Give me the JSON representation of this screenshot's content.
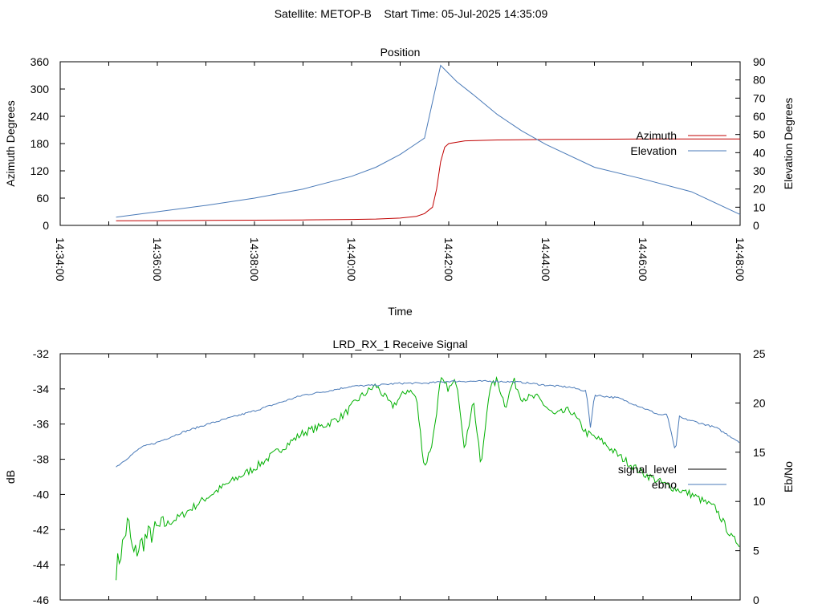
{
  "header": {
    "title": "Satellite: METOP-B    Start Time: 05-Jul-2025 14:35:09"
  },
  "chart_data": [
    {
      "type": "line",
      "title": "Position",
      "xlabel": "Time",
      "ylabel": "Azimuth Degrees",
      "y2label": "Elevation Degrees",
      "x_ticks": [
        "14:34:00",
        "14:36:00",
        "14:38:00",
        "14:40:00",
        "14:42:00",
        "14:44:00",
        "14:46:00",
        "14:48:00"
      ],
      "xlim": [
        "14:34:00",
        "14:48:00"
      ],
      "ylim": [
        0,
        360
      ],
      "y_ticks": [
        0,
        60,
        120,
        180,
        240,
        300,
        360
      ],
      "y2lim": [
        0,
        90
      ],
      "y2_ticks": [
        0,
        10,
        20,
        30,
        40,
        50,
        60,
        70,
        80,
        90
      ],
      "legend_position": "right",
      "series": [
        {
          "name": "Azimuth",
          "axis": "y",
          "color": "#c00000",
          "x": [
            "14:35:09",
            "14:36:00",
            "14:37:00",
            "14:38:00",
            "14:39:00",
            "14:40:00",
            "14:40:30",
            "14:41:00",
            "14:41:20",
            "14:41:30",
            "14:41:40",
            "14:41:45",
            "14:41:50",
            "14:41:55",
            "14:42:00",
            "14:42:20",
            "14:43:00",
            "14:44:00",
            "14:46:00",
            "14:48:00"
          ],
          "values": [
            10,
            10.5,
            11,
            11.5,
            12,
            13,
            14,
            16,
            20,
            26,
            40,
            80,
            140,
            172,
            180,
            186,
            188,
            189,
            190,
            190
          ]
        },
        {
          "name": "Elevation",
          "axis": "y2",
          "color": "#4a7ab8",
          "x": [
            "14:35:09",
            "14:36:00",
            "14:37:00",
            "14:38:00",
            "14:39:00",
            "14:40:00",
            "14:40:30",
            "14:41:00",
            "14:41:30",
            "14:41:50",
            "14:42:10",
            "14:42:30",
            "14:43:00",
            "14:43:30",
            "14:44:00",
            "14:45:00",
            "14:46:00",
            "14:47:00",
            "14:48:00"
          ],
          "values": [
            4.5,
            7.5,
            11,
            15,
            20,
            27,
            32,
            39,
            48,
            88,
            79,
            72,
            61,
            52,
            44.5,
            32,
            25.5,
            18.5,
            6
          ]
        }
      ]
    },
    {
      "type": "line",
      "title": "LRD_RX_1 Receive Signal",
      "xlabel": "",
      "ylabel": "dB",
      "y2label": "Eb/No",
      "xlim": [
        "14:34:00",
        "14:48:00"
      ],
      "ylim": [
        -46,
        -32
      ],
      "y_ticks": [
        -46,
        -44,
        -42,
        -40,
        -38,
        -36,
        -34,
        -32
      ],
      "y2lim": [
        0,
        25
      ],
      "y2_ticks": [
        0,
        5,
        10,
        15,
        20,
        25
      ],
      "legend_position": "right",
      "series": [
        {
          "name": "signal_level",
          "axis": "y",
          "legend_color": "#000000",
          "color": "#00b000",
          "x": [
            "14:35:09",
            "14:35:14",
            "14:35:24",
            "14:35:30",
            "14:35:45",
            "14:36:00",
            "14:36:30",
            "14:37:00",
            "14:37:30",
            "14:38:00",
            "14:38:30",
            "14:39:00",
            "14:39:30",
            "14:39:50",
            "14:40:10",
            "14:40:30",
            "14:40:50",
            "14:41:10",
            "14:41:20",
            "14:41:30",
            "14:41:40",
            "14:41:50",
            "14:42:00",
            "14:42:10",
            "14:42:20",
            "14:42:30",
            "14:42:40",
            "14:42:50",
            "14:43:00",
            "14:43:10",
            "14:43:20",
            "14:43:30",
            "14:43:50",
            "14:44:10",
            "14:44:30",
            "14:44:50",
            "14:45:10",
            "14:45:30",
            "14:46:00",
            "14:46:30",
            "14:47:00",
            "14:47:30",
            "14:47:50",
            "14:48:00"
          ],
          "values": [
            -44.2,
            -43.5,
            -41.5,
            -43.5,
            -42.5,
            -42,
            -41.2,
            -40.2,
            -39.3,
            -38.5,
            -37.5,
            -36.5,
            -36,
            -35.5,
            -34.5,
            -33.8,
            -35,
            -34,
            -34.5,
            -38.5,
            -37,
            -33.5,
            -34,
            -33.5,
            -37.5,
            -34.5,
            -38.5,
            -34,
            -33.5,
            -35,
            -33.5,
            -34.5,
            -34.5,
            -35.5,
            -35.2,
            -36.5,
            -37,
            -37.8,
            -38.8,
            -39.5,
            -40,
            -40.8,
            -42.5,
            -42.8
          ]
        },
        {
          "name": "ebno",
          "axis": "y2",
          "color": "#4a7ab8",
          "x": [
            "14:35:09",
            "14:35:20",
            "14:35:40",
            "14:36:00",
            "14:36:30",
            "14:37:00",
            "14:37:30",
            "14:38:00",
            "14:38:30",
            "14:39:00",
            "14:39:30",
            "14:40:00",
            "14:40:30",
            "14:41:00",
            "14:41:30",
            "14:42:00",
            "14:42:30",
            "14:43:00",
            "14:43:30",
            "14:44:00",
            "14:44:30",
            "14:44:50",
            "14:44:55",
            "14:45:00",
            "14:45:30",
            "14:46:00",
            "14:46:20",
            "14:46:30",
            "14:46:40",
            "14:46:45",
            "14:46:50",
            "14:47:00",
            "14:47:30",
            "14:48:00"
          ],
          "values": [
            13.5,
            14.2,
            15.5,
            16,
            17,
            17.8,
            18.5,
            19.2,
            20,
            20.8,
            21.2,
            21.7,
            21.8,
            22,
            22,
            22.2,
            22.2,
            22.2,
            22.1,
            21.8,
            21.6,
            21.2,
            17.5,
            20.8,
            20.5,
            19.5,
            18.8,
            18.8,
            15,
            18.6,
            18.4,
            18.2,
            17.5,
            16
          ]
        }
      ]
    }
  ]
}
